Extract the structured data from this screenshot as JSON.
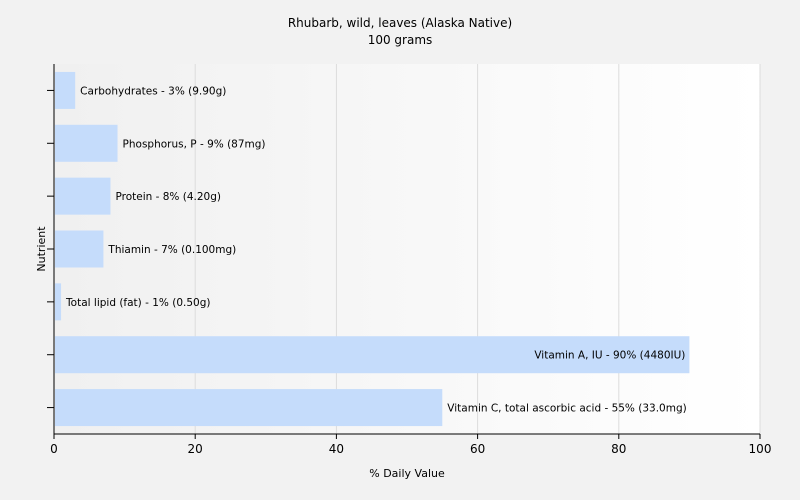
{
  "chart_data": {
    "type": "bar",
    "orientation": "horizontal",
    "title": "Rhubarb, wild, leaves (Alaska Native)",
    "subtitle": "100 grams",
    "xlabel": "% Daily Value",
    "ylabel": "Nutrient",
    "xlim": [
      0,
      100
    ],
    "xticks": [
      "0",
      "20",
      "40",
      "60",
      "80",
      "100"
    ],
    "grid": true,
    "bar_color": "#c5dcfb",
    "categories": [
      "Carbohydrates",
      "Phosphorus, P",
      "Protein",
      "Thiamin",
      "Total lipid (fat)",
      "Vitamin A, IU",
      "Vitamin C, total ascorbic acid"
    ],
    "values": [
      3,
      9,
      8,
      7,
      1,
      90,
      55
    ],
    "labels": [
      "Carbohydrates - 3% (9.90g)",
      "Phosphorus, P - 9% (87mg)",
      "Protein - 8% (4.20g)",
      "Thiamin - 7% (0.100mg)",
      "Total lipid (fat) - 1% (0.50g)",
      "Vitamin A, IU - 90% (4480IU)",
      "Vitamin C, total ascorbic acid - 55% (33.0mg)"
    ]
  }
}
